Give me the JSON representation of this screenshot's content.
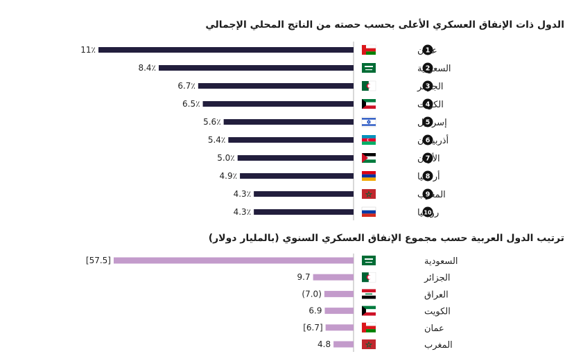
{
  "chart_data": [
    {
      "type": "bar",
      "orientation": "horizontal",
      "title": "الدول ذات الإنفاق العسكري الأعلى بحسب حصته من الناتج المحلي الإجمالي",
      "categories": [
        "عمان",
        "السعودية",
        "الجزائر",
        "الكويت",
        "إسرائيل",
        "أذربيجان",
        "الأردن",
        "أرمينيا",
        "المغرب",
        "روسيا"
      ],
      "ranks": [
        "1",
        "2",
        "3",
        "4",
        "5",
        "6",
        "7",
        "8",
        "9",
        "10"
      ],
      "flags": [
        "oman",
        "saudi",
        "algeria",
        "kuwait",
        "israel",
        "azerbaijan",
        "jordan",
        "armenia",
        "morocco",
        "russia"
      ],
      "values": [
        11,
        8.4,
        6.7,
        6.5,
        5.6,
        5.4,
        5.0,
        4.9,
        4.3,
        4.3
      ],
      "value_labels": [
        "11٪",
        "8.4٪",
        "6.7٪",
        "6.5٪",
        "5.6٪",
        "5.4٪",
        "5.0٪",
        "4.9٪",
        "4.3٪",
        "4.3٪"
      ],
      "bar_color": "#221e3d"
    },
    {
      "type": "bar",
      "orientation": "horizontal",
      "title": "ترتيب الدول العربية حسب مجموع الإنفاق العسكري السنوي (بالمليار دولار)",
      "categories": [
        "السعودية",
        "الجزائر",
        "العراق",
        "الكويت",
        "عمان",
        "المغرب"
      ],
      "flags": [
        "saudi",
        "algeria",
        "iraq",
        "kuwait",
        "oman",
        "morocco"
      ],
      "values": [
        57.5,
        9.7,
        7.0,
        6.9,
        6.7,
        4.8
      ],
      "value_labels": [
        "[57.5]",
        "9.7",
        "(7.0)",
        "6.9",
        "[6.7]",
        "4.8"
      ],
      "bar_color": "#c39bcb"
    }
  ]
}
